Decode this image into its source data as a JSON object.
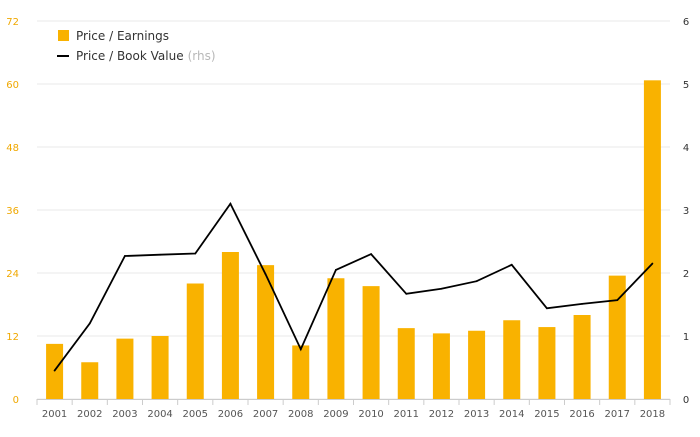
{
  "colors": {
    "bar": "#f9b200",
    "line": "#000000",
    "grid": "#e8e8e8",
    "left_axis_text": "#f0a800",
    "right_axis_text": "#333333",
    "legend_note": "#b8b8b8"
  },
  "legend": {
    "pe_label": "Price / Earnings",
    "pb_label": "Price / Book Value",
    "pb_note": "(rhs)"
  },
  "chart_data": {
    "type": "bar",
    "categories": [
      "2001",
      "2002",
      "2003",
      "2004",
      "2005",
      "2006",
      "2007",
      "2008",
      "2009",
      "2010",
      "2011",
      "2012",
      "2013",
      "2014",
      "2015",
      "2016",
      "2017",
      "2018"
    ],
    "series": [
      {
        "name": "Price / Earnings",
        "type": "bar",
        "axis": "left",
        "values": [
          10.5,
          7.0,
          11.5,
          12.0,
          22.0,
          28.0,
          25.5,
          10.2,
          23.0,
          21.5,
          13.5,
          12.5,
          13.0,
          15.0,
          13.7,
          16.0,
          23.5,
          60.7
        ]
      },
      {
        "name": "Price / Book Value",
        "type": "line",
        "axis": "right",
        "values": [
          0.45,
          1.2,
          2.27,
          2.29,
          2.31,
          3.1,
          1.98,
          0.79,
          2.05,
          2.3,
          1.67,
          1.75,
          1.87,
          2.13,
          1.44,
          1.51,
          1.57,
          2.15
        ]
      }
    ],
    "y_left": {
      "ticks": [
        0,
        12,
        24,
        36,
        48,
        60,
        72
      ],
      "ylim": [
        0,
        72
      ]
    },
    "y_right": {
      "ticks": [
        0,
        1,
        2,
        3,
        4,
        5,
        6
      ],
      "ylim": [
        0,
        6
      ]
    },
    "grid": true,
    "legend_position": "top-left"
  }
}
